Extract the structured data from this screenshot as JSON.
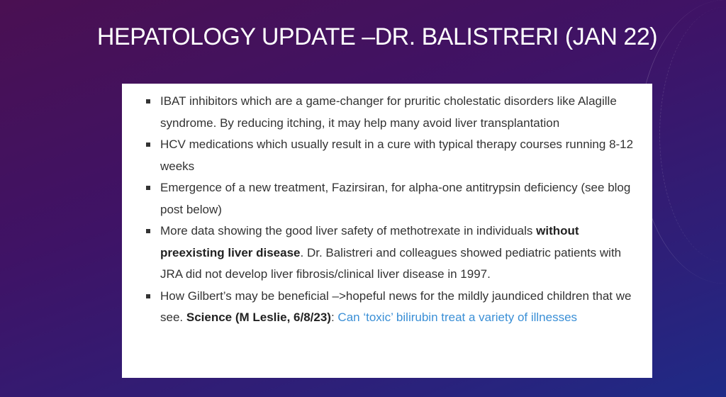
{
  "slide": {
    "title": "HEPATOLOGY UPDATE –DR. BALISTRERI (JAN 22)",
    "bullets": [
      {
        "text": "IBAT inhibitors which are a game-changer for pruritic cholestatic disorders like Alagille syndrome.  By reducing itching, it may help many avoid liver transplantation"
      },
      {
        "text": "HCV medications which usually result in a cure with typical therapy courses running 8-12 weeks"
      },
      {
        "text": "Emergence of a new treatment, Fazirsiran, for alpha-one antitrypsin deficiency (see blog post below)"
      },
      {
        "pre": "More data showing the good liver safety of methotrexate in individuals ",
        "bold": "without preexisting liver disease",
        "post": ".  Dr. Balistreri and colleagues showed pediatric patients with JRA did not develop liver fibrosis/clinical liver disease in 1997."
      },
      {
        "pre": "How Gilbert’s may be beneficial –>hopeful news for the mildly jaundiced children that we see. ",
        "bold": "Science (M Leslie, 6/8/23)",
        "mid": ": ",
        "link": "Can ‘toxic’ bilirubin treat a variety of illnesses"
      }
    ]
  },
  "colors": {
    "link": "#3a8fd6",
    "background_start": "#4a1052",
    "background_end": "#1f2a86"
  }
}
